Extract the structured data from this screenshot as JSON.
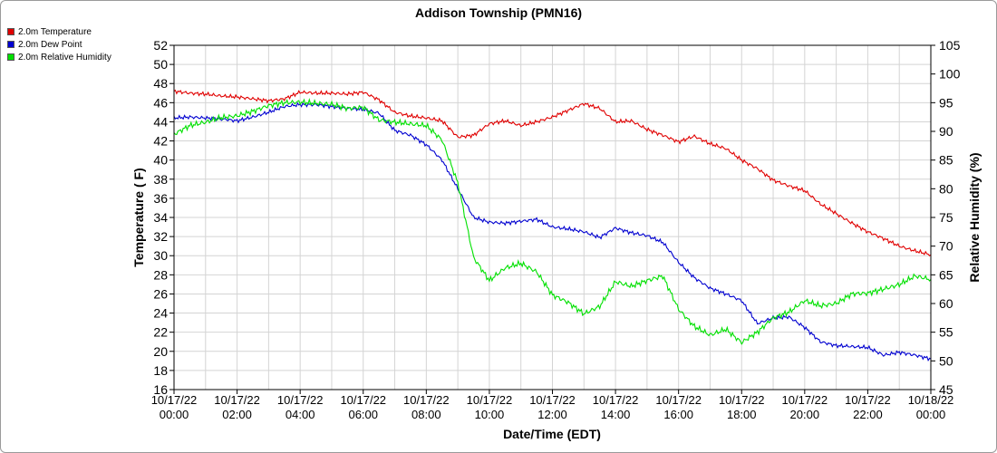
{
  "chart_data": {
    "type": "line",
    "title": "Addison Township (PMN16)",
    "xlabel": "Date/Time (EDT)",
    "ylabel_left": "Temperature ( F)",
    "ylabel_right": "Relative Humidity (%)",
    "ylim_left": [
      16,
      52
    ],
    "ylim_right": [
      45,
      105
    ],
    "xlim_hours": [
      0,
      24
    ],
    "yticks_left": [
      16,
      18,
      20,
      22,
      24,
      26,
      28,
      30,
      32,
      34,
      36,
      38,
      40,
      42,
      44,
      46,
      48,
      50,
      52
    ],
    "yticks_right": [
      45,
      50,
      55,
      60,
      65,
      70,
      75,
      80,
      85,
      90,
      95,
      100,
      105
    ],
    "xticks": [
      {
        "date": "10/17/22",
        "time": "00:00"
      },
      {
        "date": "10/17/22",
        "time": "02:00"
      },
      {
        "date": "10/17/22",
        "time": "04:00"
      },
      {
        "date": "10/17/22",
        "time": "06:00"
      },
      {
        "date": "10/17/22",
        "time": "08:00"
      },
      {
        "date": "10/17/22",
        "time": "10:00"
      },
      {
        "date": "10/17/22",
        "time": "12:00"
      },
      {
        "date": "10/17/22",
        "time": "14:00"
      },
      {
        "date": "10/17/22",
        "time": "16:00"
      },
      {
        "date": "10/17/22",
        "time": "18:00"
      },
      {
        "date": "10/17/22",
        "time": "20:00"
      },
      {
        "date": "10/17/22",
        "time": "22:00"
      },
      {
        "date": "10/18/22",
        "time": "00:00"
      }
    ],
    "grid": true,
    "legend_position": "top-left",
    "series": [
      {
        "name": "2.0m Temperature",
        "color": "#e00000",
        "axis": "left",
        "x_hours": [
          0,
          0.5,
          1,
          1.5,
          2,
          2.5,
          3,
          3.5,
          4,
          4.5,
          5,
          5.5,
          6,
          6.5,
          7,
          7.5,
          8,
          8.5,
          9,
          9.5,
          10,
          10.5,
          11,
          11.5,
          12,
          12.5,
          13,
          13.5,
          14,
          14.5,
          15,
          15.5,
          16,
          16.5,
          17,
          17.5,
          18,
          18.5,
          19,
          19.5,
          20,
          20.5,
          21,
          21.5,
          22,
          22.5,
          23,
          23.5,
          24
        ],
        "values": [
          47.2,
          47.0,
          46.9,
          46.7,
          46.6,
          46.4,
          46.2,
          46.4,
          47.1,
          47.0,
          47.0,
          46.9,
          47.1,
          46.3,
          45.0,
          44.6,
          44.4,
          44.1,
          42.4,
          42.6,
          43.8,
          44.1,
          43.6,
          44.0,
          44.5,
          45.2,
          45.9,
          45.4,
          44.0,
          44.1,
          43.2,
          42.6,
          41.9,
          42.5,
          41.7,
          41.2,
          40.0,
          39.1,
          37.9,
          37.3,
          36.8,
          35.4,
          34.4,
          33.4,
          32.5,
          31.8,
          31.0,
          30.5,
          30.1
        ]
      },
      {
        "name": "2.0m Dew Point",
        "color": "#0000d0",
        "axis": "left",
        "x_hours": [
          0,
          0.5,
          1,
          1.5,
          2,
          2.5,
          3,
          3.5,
          4,
          4.5,
          5,
          5.5,
          6,
          6.5,
          7,
          7.5,
          8,
          8.5,
          9,
          9.5,
          10,
          10.5,
          11,
          11.5,
          12,
          12.5,
          13,
          13.5,
          14,
          14.5,
          15,
          15.5,
          16,
          16.5,
          17,
          17.5,
          18,
          18.5,
          19,
          19.5,
          20,
          20.5,
          21,
          21.5,
          22,
          22.5,
          23,
          23.5,
          24
        ],
        "values": [
          44.4,
          44.5,
          44.4,
          44.3,
          44.1,
          44.5,
          45.0,
          45.6,
          45.8,
          45.8,
          45.6,
          45.4,
          45.3,
          44.9,
          43.1,
          42.6,
          41.6,
          40.0,
          37.0,
          34.0,
          33.5,
          33.4,
          33.6,
          33.8,
          33.0,
          32.8,
          32.5,
          31.9,
          32.9,
          32.4,
          32.1,
          31.4,
          29.3,
          27.7,
          26.6,
          26.0,
          25.3,
          22.9,
          23.5,
          23.6,
          22.5,
          21.0,
          20.6,
          20.5,
          20.4,
          19.6,
          19.9,
          19.6,
          19.2
        ]
      },
      {
        "name": "2.0m Relative Humidity",
        "color": "#00e000",
        "axis": "right",
        "x_hours": [
          0,
          0.5,
          1,
          1.5,
          2,
          2.5,
          3,
          3.5,
          4,
          4.5,
          5,
          5.5,
          6,
          6.5,
          7,
          7.5,
          8,
          8.5,
          9,
          9.5,
          10,
          10.5,
          11,
          11.5,
          12,
          12.5,
          13,
          13.5,
          14,
          14.5,
          15,
          15.5,
          16,
          16.5,
          17,
          17.5,
          18,
          18.5,
          19,
          19.5,
          20,
          20.5,
          21,
          21.5,
          22,
          22.5,
          23,
          23.5,
          24
        ],
        "values": [
          89.5,
          91.0,
          91.6,
          92.4,
          92.7,
          93.5,
          94.5,
          95.0,
          95.1,
          94.9,
          94.7,
          94.0,
          94.2,
          92.0,
          91.6,
          91.3,
          91.0,
          88.5,
          81.0,
          68.0,
          64.0,
          66.2,
          67.0,
          65.5,
          61.5,
          60.2,
          58.2,
          59.5,
          63.8,
          63.0,
          64.0,
          64.8,
          59.0,
          56.0,
          54.5,
          55.5,
          53.2,
          55.0,
          57.5,
          58.5,
          60.5,
          59.6,
          60.0,
          61.7,
          61.8,
          62.5,
          63.3,
          64.8,
          64.2
        ]
      }
    ]
  }
}
